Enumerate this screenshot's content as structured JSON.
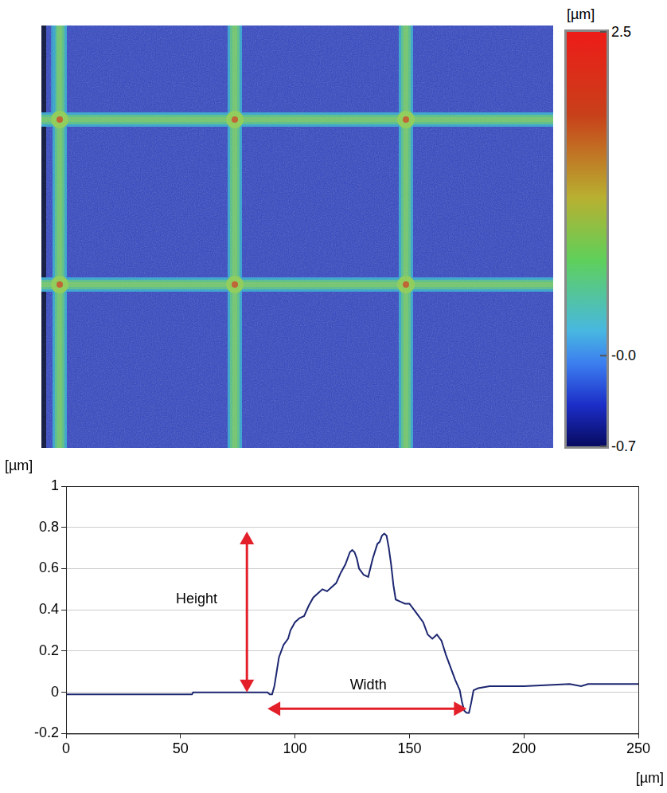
{
  "chart_data": [
    {
      "type": "surface_map",
      "colorbar": {
        "label": "[µm]",
        "range": [
          -0.7,
          2.5
        ],
        "ticks": [
          2.5,
          {
            "value": 0,
            "label": "-0.0"
          },
          -0.7
        ]
      }
    },
    {
      "type": "line",
      "x": [
        0,
        55,
        55.5,
        88,
        89,
        90,
        91,
        92,
        93,
        95,
        97,
        98,
        100,
        102,
        104,
        106,
        108,
        110,
        112,
        114,
        116,
        118,
        120,
        122,
        124,
        125,
        126,
        127,
        128,
        130,
        132,
        134,
        136,
        137,
        138,
        139,
        140,
        141,
        142,
        143,
        144,
        146,
        148,
        150,
        152,
        154,
        156,
        158,
        160,
        162,
        164,
        166,
        168,
        170,
        172,
        173,
        174,
        175,
        176,
        177,
        178,
        180,
        185,
        200,
        220,
        225,
        228,
        230,
        240,
        250
      ],
      "values": [
        -0.01,
        -0.01,
        0,
        0,
        -0.01,
        -0.01,
        0.03,
        0.1,
        0.17,
        0.23,
        0.26,
        0.3,
        0.34,
        0.36,
        0.37,
        0.42,
        0.46,
        0.48,
        0.5,
        0.49,
        0.51,
        0.53,
        0.58,
        0.62,
        0.68,
        0.69,
        0.68,
        0.65,
        0.6,
        0.57,
        0.56,
        0.65,
        0.72,
        0.73,
        0.76,
        0.77,
        0.76,
        0.7,
        0.62,
        0.52,
        0.45,
        0.44,
        0.43,
        0.43,
        0.4,
        0.37,
        0.34,
        0.28,
        0.26,
        0.28,
        0.25,
        0.18,
        0.12,
        0.06,
        0.01,
        -0.05,
        -0.09,
        -0.1,
        -0.1,
        -0.05,
        0.01,
        0.02,
        0.03,
        0.03,
        0.04,
        0.03,
        0.04,
        0.04,
        0.04,
        0.04
      ],
      "color": "#1c2670",
      "x_label": "[µm]",
      "y_label": "[µm]",
      "xlim": [
        0,
        250
      ],
      "xticks": [
        0,
        50,
        100,
        150,
        200,
        250
      ],
      "ylim": [
        -0.2,
        1
      ],
      "yticks": [
        -0.2,
        0,
        0.2,
        0.4,
        0.6,
        0.8,
        1
      ],
      "grid": "y",
      "annotations": [
        {
          "text": "Height",
          "x": 57,
          "y": 0.45,
          "arrow": [
            [
              79,
              0
            ],
            [
              79,
              0.78
            ]
          ]
        },
        {
          "text": "Width",
          "x": 132,
          "y": 0.035,
          "arrow": [
            [
              88,
              -0.08
            ],
            [
              175,
              -0.08
            ]
          ]
        }
      ]
    }
  ]
}
